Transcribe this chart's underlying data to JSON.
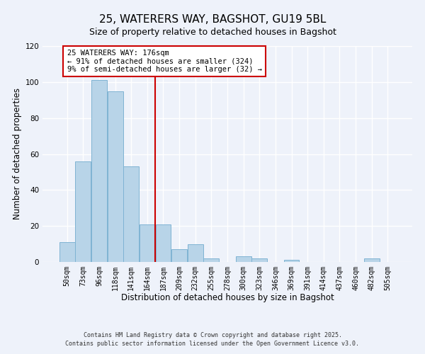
{
  "title": "25, WATERERS WAY, BAGSHOT, GU19 5BL",
  "subtitle": "Size of property relative to detached houses in Bagshot",
  "xlabel": "Distribution of detached houses by size in Bagshot",
  "ylabel": "Number of detached properties",
  "bar_labels": [
    "50sqm",
    "73sqm",
    "96sqm",
    "118sqm",
    "141sqm",
    "164sqm",
    "187sqm",
    "209sqm",
    "232sqm",
    "255sqm",
    "278sqm",
    "300sqm",
    "323sqm",
    "346sqm",
    "369sqm",
    "391sqm",
    "414sqm",
    "437sqm",
    "460sqm",
    "482sqm",
    "505sqm"
  ],
  "bar_values": [
    11,
    56,
    101,
    95,
    53,
    21,
    21,
    7,
    10,
    2,
    0,
    3,
    2,
    0,
    1,
    0,
    0,
    0,
    0,
    2,
    0
  ],
  "bar_color": "#b8d4e8",
  "bar_edge_color": "#7fb3d3",
  "vline_x": 5.5,
  "vline_color": "#cc0000",
  "ylim": [
    0,
    120
  ],
  "yticks": [
    0,
    20,
    40,
    60,
    80,
    100,
    120
  ],
  "annotation_line1": "25 WATERERS WAY: 176sqm",
  "annotation_line2": "← 91% of detached houses are smaller (324)",
  "annotation_line3": "9% of semi-detached houses are larger (32) →",
  "footer_line1": "Contains HM Land Registry data © Crown copyright and database right 2025.",
  "footer_line2": "Contains public sector information licensed under the Open Government Licence v3.0.",
  "background_color": "#eef2fa",
  "grid_color": "#ffffff",
  "title_fontsize": 11,
  "axis_label_fontsize": 8.5,
  "tick_fontsize": 7,
  "annotation_fontsize": 7.5,
  "footer_fontsize": 6
}
